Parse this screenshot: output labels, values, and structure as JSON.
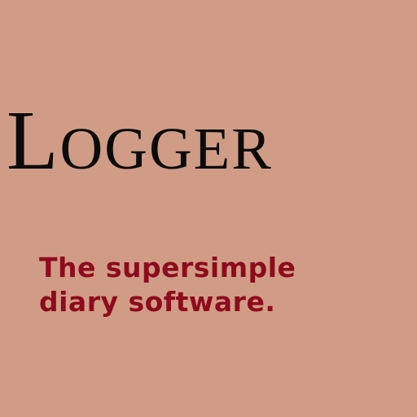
{
  "app": {
    "title": "Logger",
    "tagline": {
      "line1": "The supersimple",
      "line2": "diary software."
    }
  },
  "colors": {
    "background": "#D09C86",
    "title": "#0B0B0B",
    "tagline": "#8E0A1C"
  }
}
